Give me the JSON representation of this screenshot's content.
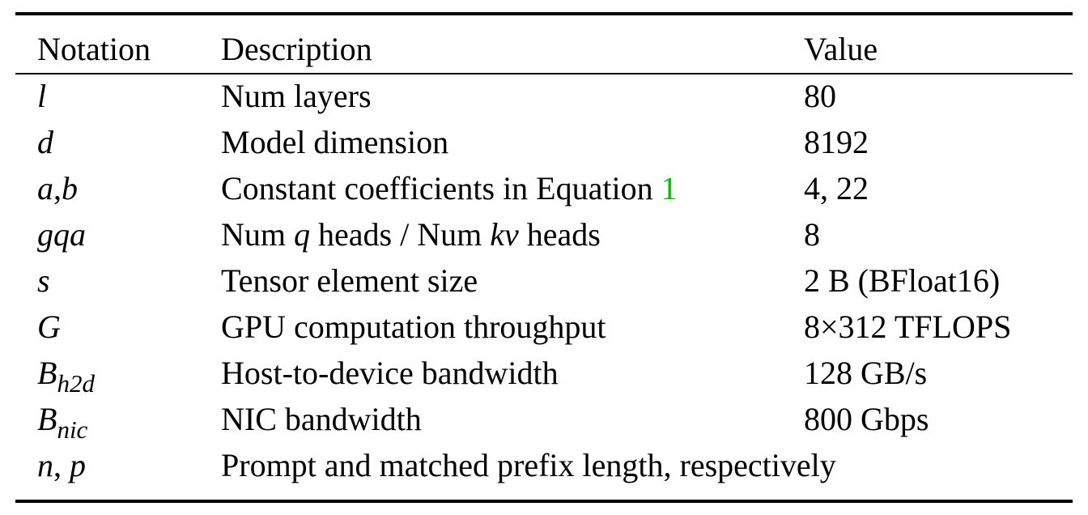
{
  "table": {
    "header": {
      "notation": "Notation",
      "description": "Description",
      "value": "Value"
    },
    "rows": [
      {
        "notation": {
          "var": "l"
        },
        "description": "Num layers",
        "value": "80"
      },
      {
        "notation": {
          "var": "d"
        },
        "description": "Model dimension",
        "value": "8192"
      },
      {
        "notation": {
          "var1": "a",
          "sep": ",",
          "var2": "b"
        },
        "description": {
          "text": "Constant coefficients in Equation ",
          "ref": "1"
        },
        "value": "4, 22"
      },
      {
        "notation": {
          "var": "gqa"
        },
        "description": {
          "p1": "Num ",
          "v1": "q",
          "p2": " heads / Num ",
          "v2": "kv",
          "p3": " heads"
        },
        "value": "8"
      },
      {
        "notation": {
          "var": "s"
        },
        "description": "Tensor element size",
        "value": "2 B (BFloat16)"
      },
      {
        "notation": {
          "var": "G"
        },
        "description": "GPU computation throughput",
        "value": "8×312 TFLOPS"
      },
      {
        "notation": {
          "var": "B",
          "sub": "h2d"
        },
        "description": "Host-to-device bandwidth",
        "value": "128 GB/s"
      },
      {
        "notation": {
          "var": "B",
          "sub": "nic"
        },
        "description": "NIC bandwidth",
        "value": "800 Gbps"
      },
      {
        "notation": {
          "var1": "n",
          "sep": ", ",
          "var2": "p"
        },
        "description": "Prompt and matched prefix length, respectively",
        "value": ""
      }
    ]
  }
}
